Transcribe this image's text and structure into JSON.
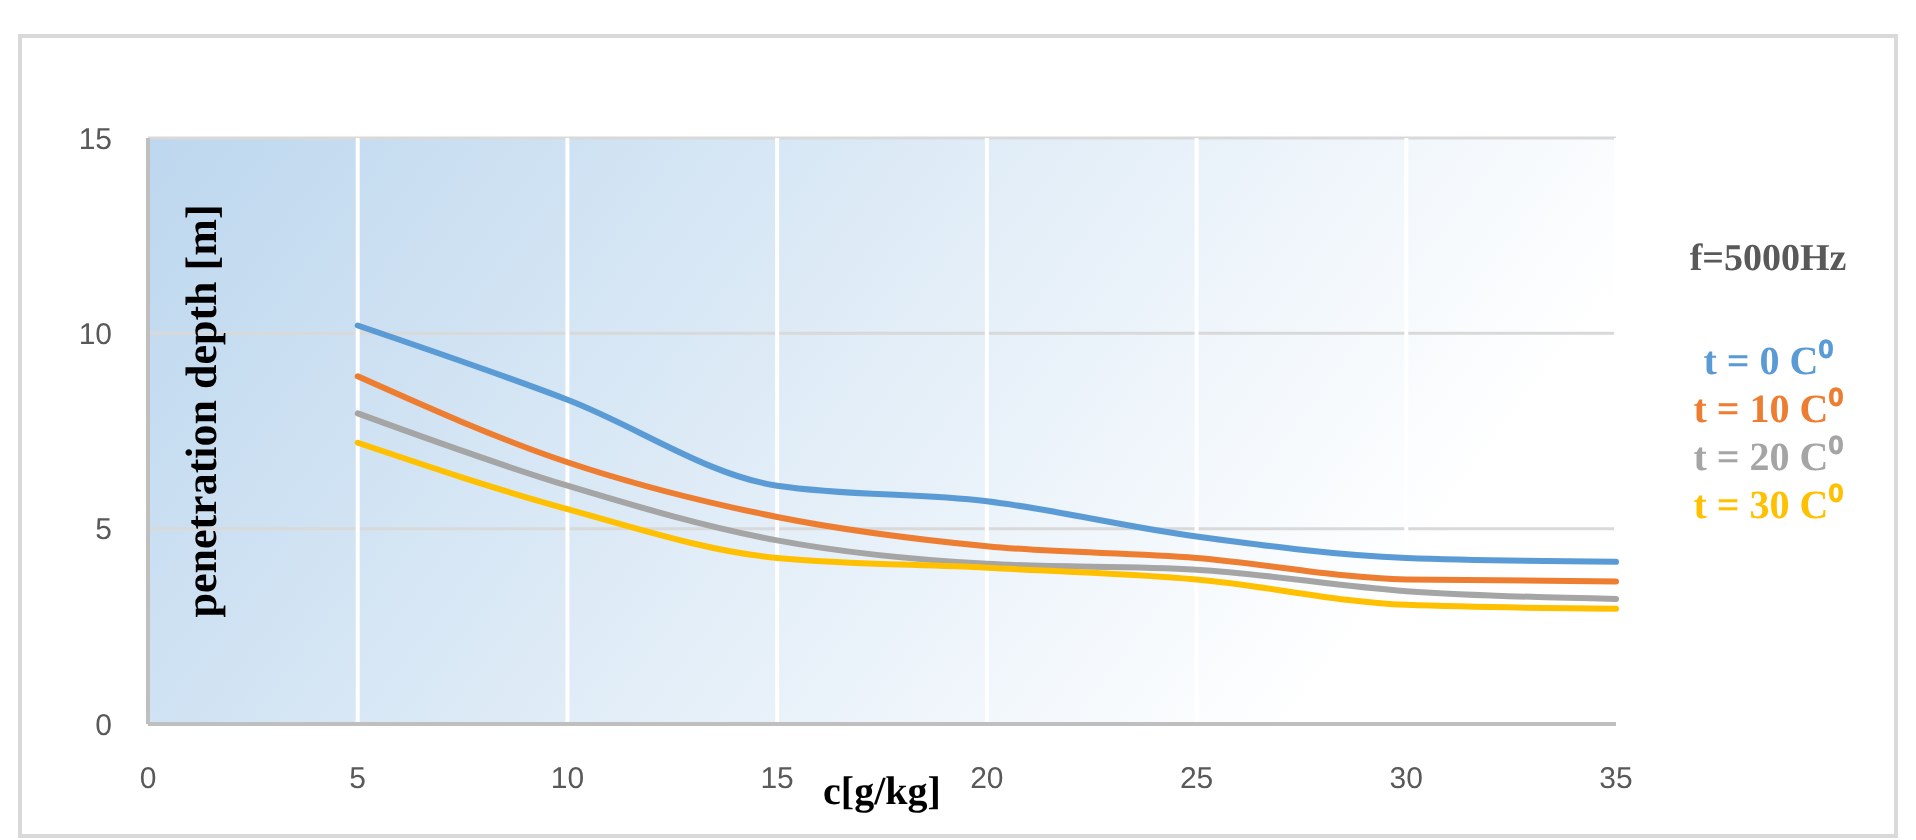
{
  "chart_data": {
    "type": "line",
    "xlabel": "c[g/kg]",
    "ylabel": "penetration depth  [m]",
    "annotations": [
      "f=5000Hz"
    ],
    "x": [
      5,
      10,
      15,
      20,
      25,
      30,
      35
    ],
    "series": [
      {
        "name": "t = 0 C⁰",
        "color": "#5b9bd5",
        "values": [
          10.2,
          8.3,
          6.1,
          5.7,
          4.8,
          4.25,
          4.15
        ]
      },
      {
        "name": "t = 10 C⁰",
        "color": "#ed7d31",
        "values": [
          8.9,
          6.7,
          5.3,
          4.55,
          4.25,
          3.7,
          3.65
        ]
      },
      {
        "name": "t = 20 C⁰",
        "color": "#a5a5a5",
        "values": [
          7.95,
          6.1,
          4.7,
          4.1,
          3.95,
          3.4,
          3.2
        ]
      },
      {
        "name": "t = 30 C⁰",
        "color": "#ffc000",
        "values": [
          7.2,
          5.5,
          4.25,
          4.0,
          3.7,
          3.05,
          2.95
        ]
      }
    ],
    "xlim": [
      0,
      35
    ],
    "xticks": [
      0,
      5,
      10,
      15,
      20,
      25,
      30,
      35
    ],
    "ylim": [
      0,
      15
    ],
    "yticks": [
      0,
      5,
      10,
      15
    ],
    "grid": true,
    "legend": "right",
    "marker": "none",
    "line_style": "solid"
  }
}
